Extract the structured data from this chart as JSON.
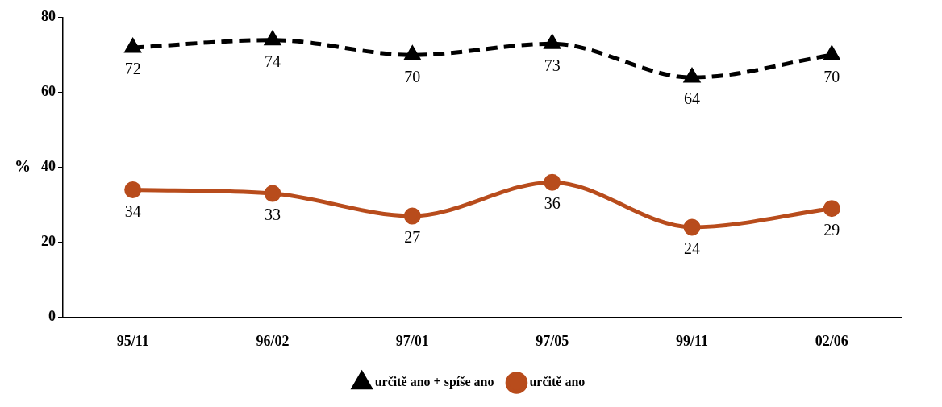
{
  "chart_data": {
    "type": "line",
    "ylabel": "%",
    "categories": [
      "95/11",
      "96/02",
      "97/01",
      "97/05",
      "99/11",
      "02/06"
    ],
    "series": [
      {
        "name": "určitě ano + spíše ano",
        "color": "#000000",
        "values": [
          72,
          74,
          70,
          73,
          64,
          70
        ],
        "marker": "triangle",
        "line_style": "dashed"
      },
      {
        "name": "určitě ano",
        "color": "#b84c1c",
        "values": [
          34,
          33,
          27,
          36,
          24,
          29
        ],
        "marker": "circle",
        "line_style": "solid"
      }
    ],
    "ylim": [
      0,
      80
    ],
    "yticks": [
      0,
      20,
      40,
      60,
      80
    ],
    "grid": false,
    "legend": "bottom",
    "data_labels": true
  }
}
